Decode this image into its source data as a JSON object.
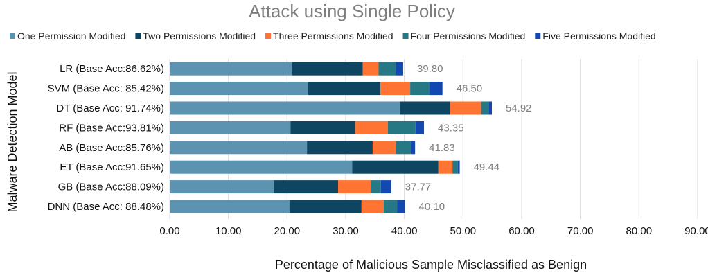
{
  "chart_data": {
    "type": "bar",
    "orientation": "horizontal",
    "stacked": true,
    "title": "Attack using Single Policy",
    "xlabel": "Percentage of Malicious Sample Misclassified as Benign",
    "ylabel": "Malware Detection Model",
    "xlim": [
      0,
      90
    ],
    "xticks": [
      "0.00",
      "10.00",
      "20.00",
      "30.00",
      "40.00",
      "50.00",
      "60.00",
      "70.00",
      "80.00",
      "90.00"
    ],
    "grid": "vertical",
    "legend": "top",
    "categories": [
      "LR (Base Acc:86.62%)",
      "SVM (Base Acc: 85.42%)",
      "DT (Base Acc: 91.74%)",
      "RF (Base Acc:93.81%)",
      "AB (Base Acc:85.76%)",
      "ET (Base Acc:91.65%)",
      "GB (Base Acc:88.09%)",
      "DNN (Base Acc: 88.48%)"
    ],
    "series": [
      {
        "name": "One Permission Modified",
        "color": "#5b93b1",
        "values": [
          20.9,
          23.6,
          39.2,
          20.6,
          23.4,
          31.1,
          17.7,
          20.4
        ]
      },
      {
        "name": "Two Permissions Modified",
        "color": "#0e4561",
        "values": [
          12.0,
          12.3,
          8.6,
          11.0,
          11.2,
          14.7,
          11.0,
          12.3
        ]
      },
      {
        "name": "Three Permissions Modified",
        "color": "#ff7433",
        "values": [
          2.7,
          5.1,
          5.3,
          5.6,
          3.9,
          2.4,
          5.6,
          3.8
        ]
      },
      {
        "name": "Four Permissions Modified",
        "color": "#267884",
        "values": [
          3.0,
          3.3,
          1.3,
          4.7,
          2.7,
          0.9,
          1.7,
          2.3
        ]
      },
      {
        "name": "Five  Permissions Modified",
        "color": "#1248b0",
        "values": [
          1.2,
          2.2,
          0.52,
          1.45,
          0.63,
          0.34,
          1.77,
          1.3
        ]
      }
    ],
    "totals": [
      "39.80",
      "46.50",
      "54.92",
      "43.35",
      "41.83",
      "49.44",
      "37.77",
      "40.10"
    ]
  }
}
